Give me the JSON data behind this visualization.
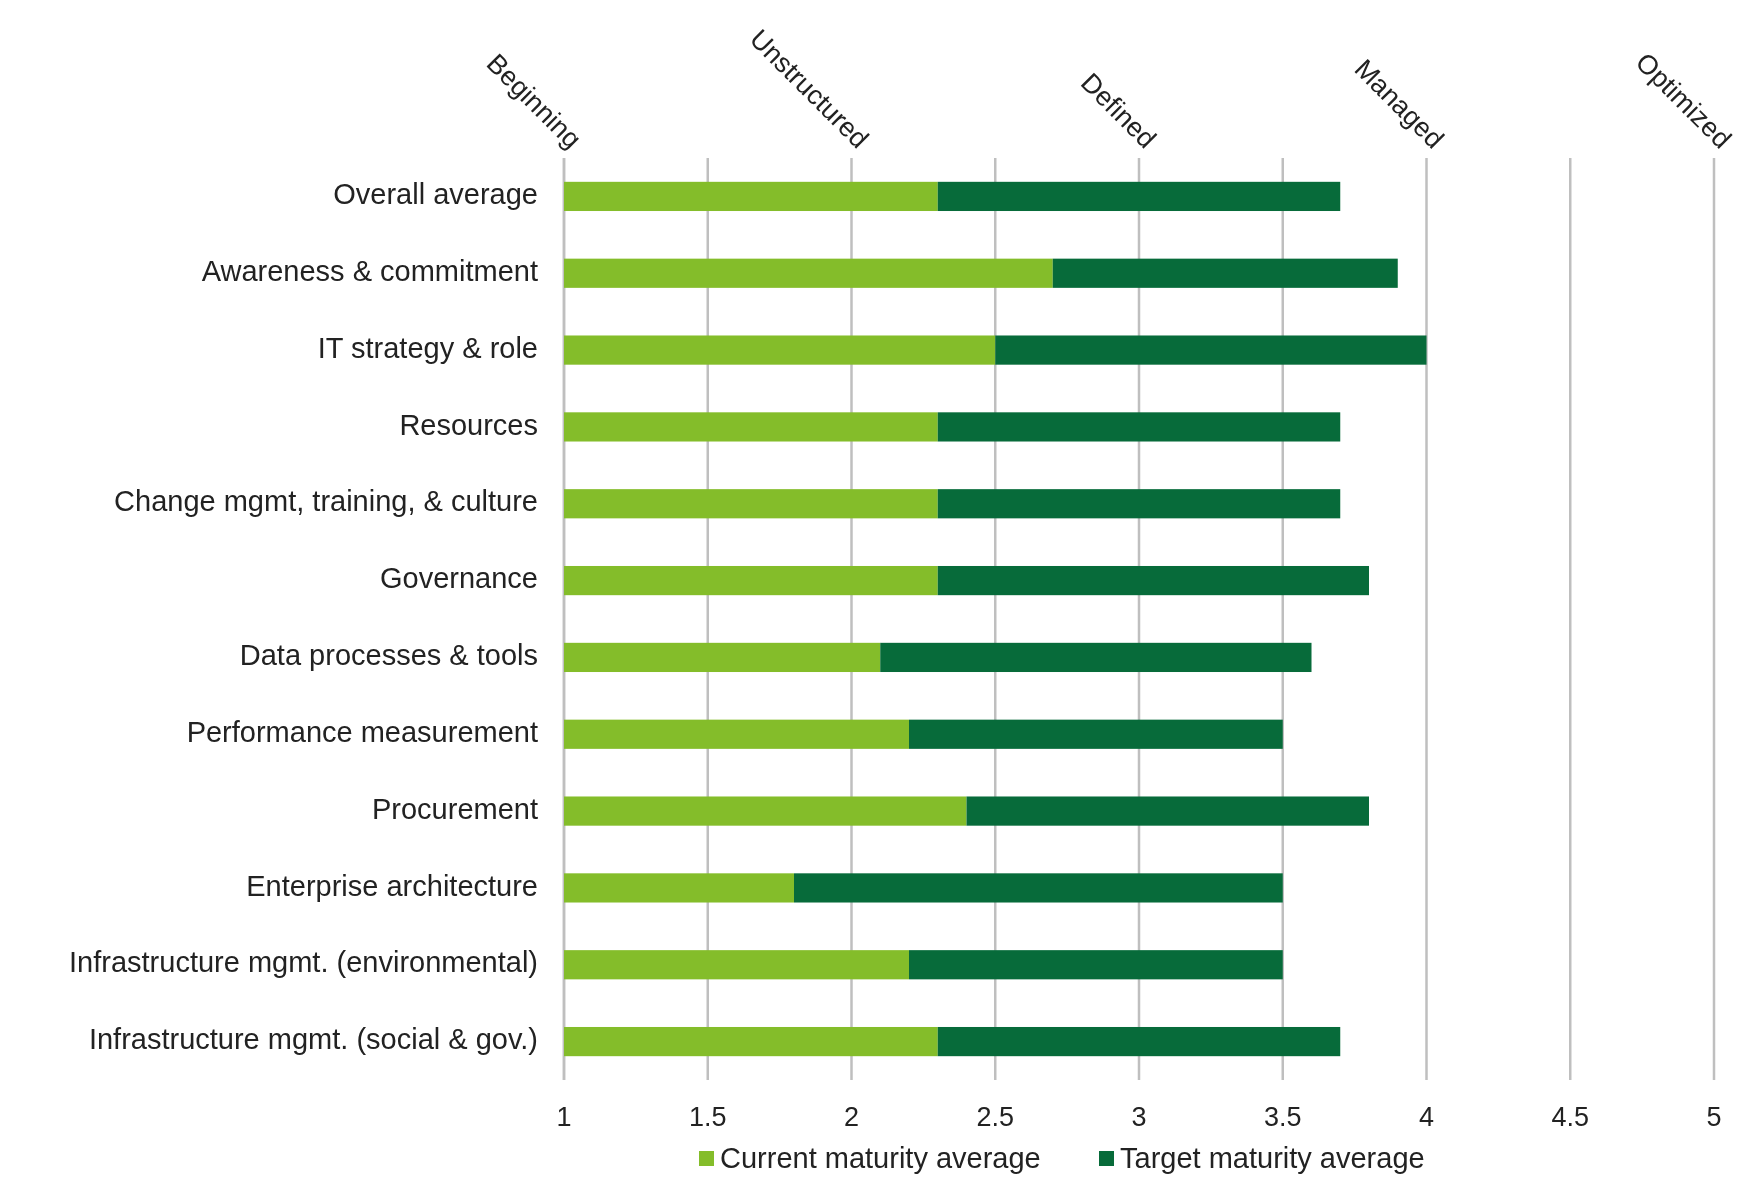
{
  "chart_data": {
    "type": "bar",
    "orientation": "horizontal",
    "stacked": true,
    "categories": [
      "Overall average",
      "Awareness & commitment",
      "IT strategy & role",
      "Resources",
      "Change mgmt, training, & culture",
      "Governance",
      "Data processes & tools",
      "Performance measurement",
      "Procurement",
      "Enterprise architecture",
      "Infrastructure mgmt. (environmental)",
      "Infrastructure mgmt. (social & gov.)"
    ],
    "series": [
      {
        "name": "Current maturity average",
        "color": "#84bd2a",
        "values": [
          2.3,
          2.7,
          2.5,
          2.3,
          2.3,
          2.3,
          2.1,
          2.2,
          2.4,
          1.8,
          2.2,
          2.3
        ]
      },
      {
        "name": "Target maturity average",
        "color": "#076b3a",
        "values": [
          1.4,
          1.2,
          1.5,
          1.4,
          1.4,
          1.5,
          1.5,
          1.3,
          1.4,
          1.7,
          1.3,
          1.4
        ]
      }
    ],
    "xlim": [
      1,
      5
    ],
    "xticks": [
      1,
      1.5,
      2,
      2.5,
      3,
      3.5,
      4,
      4.5,
      5
    ],
    "annotations": [
      "Beginning",
      "Unstructured",
      "Defined",
      "Managed",
      "Optimized"
    ],
    "grid": "x",
    "legend": "bottom"
  }
}
